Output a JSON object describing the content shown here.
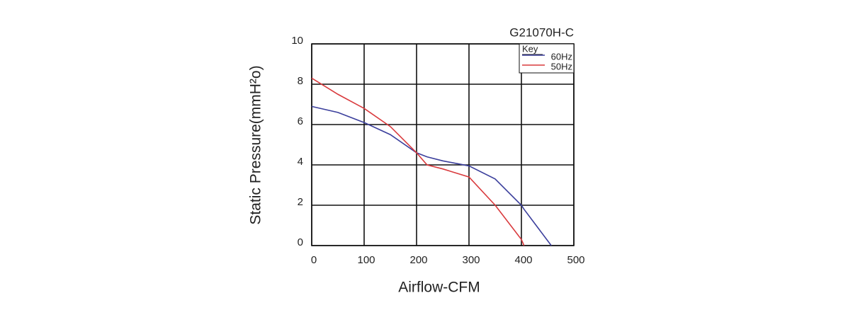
{
  "chart_data": {
    "type": "line",
    "title": "G21070H-C",
    "x_label": "Airflow-CFM",
    "y_label": "Static Pressure(mmH²o)",
    "legend_title": "Key",
    "legend": "upper right",
    "grid": true,
    "x": [
      0,
      50,
      100,
      150,
      200,
      220,
      250,
      300,
      350,
      400,
      405,
      457
    ],
    "series": [
      {
        "name": "60Hz",
        "color": "#3b3f9c",
        "values": [
          6.9,
          6.6,
          6.1,
          5.5,
          4.6,
          4.4,
          4.2,
          3.95,
          3.3,
          2.0,
          1.8,
          0
        ]
      },
      {
        "name": "50Hz",
        "color": "#d93a3d",
        "values": [
          8.3,
          7.5,
          6.8,
          5.9,
          4.6,
          4.0,
          3.8,
          3.4,
          2.0,
          0.3,
          0,
          null
        ]
      }
    ],
    "xlim": [
      0,
      500
    ],
    "xticks": [
      0,
      100,
      200,
      300,
      400,
      500
    ],
    "ylim": [
      0,
      10
    ],
    "yticks": [
      0,
      2,
      4,
      6,
      8,
      10
    ]
  }
}
